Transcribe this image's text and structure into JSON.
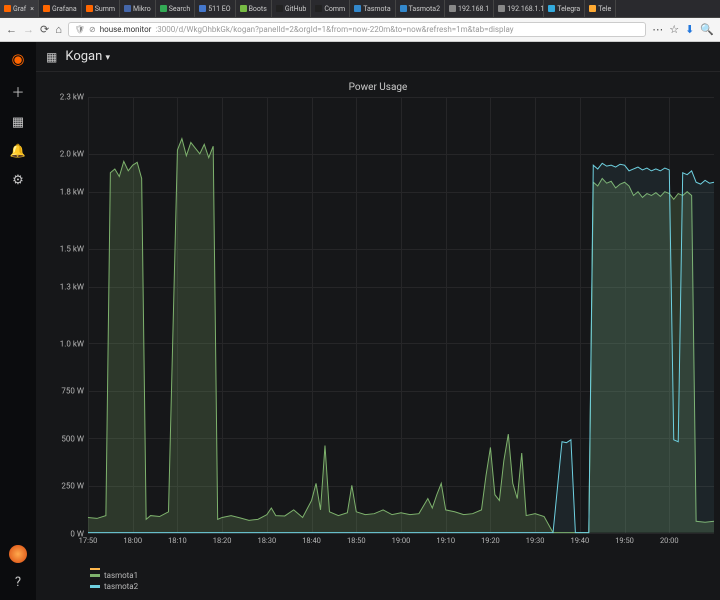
{
  "browser": {
    "tabs": [
      {
        "label": "Graf",
        "favicon": "#ff6600",
        "active": true
      },
      {
        "label": "Grafana",
        "favicon": "#ff6600"
      },
      {
        "label": "Summ",
        "favicon": "#ff6600"
      },
      {
        "label": "Mikro",
        "favicon": "#4466aa"
      },
      {
        "label": "Search",
        "favicon": "#33aa55"
      },
      {
        "label": "511 EO",
        "favicon": "#4477cc"
      },
      {
        "label": "Boots",
        "favicon": "#77bb44"
      },
      {
        "label": "GitHub",
        "favicon": "#222"
      },
      {
        "label": "Comm",
        "favicon": "#222"
      },
      {
        "label": "Tasmota",
        "favicon": "#3388cc"
      },
      {
        "label": "Tasmota2",
        "favicon": "#3388cc"
      },
      {
        "label": "192.168.1",
        "favicon": "#888"
      },
      {
        "label": "192.168.1.1",
        "favicon": "#888"
      },
      {
        "label": "Telegra",
        "favicon": "#33aadd"
      },
      {
        "label": "Tele",
        "favicon": "#ffaa33"
      }
    ],
    "url_host": "house.monitor",
    "url_path": ":3000/d/WkgOhbkGk/kogan?panelId=2&orgId=1&from=now-220m&to=now&refresh=1m&tab=display"
  },
  "dashboard": {
    "title": "Kogan"
  },
  "panel": {
    "title": "Power Usage",
    "y": {
      "ticks": [
        {
          "v": 0,
          "label": "0 W"
        },
        {
          "v": 250,
          "label": "250 W"
        },
        {
          "v": 500,
          "label": "500 W"
        },
        {
          "v": 750,
          "label": "750 W"
        },
        {
          "v": 1000,
          "label": "1.0 kW"
        },
        {
          "v": 1300,
          "label": "1.3 kW"
        },
        {
          "v": 1500,
          "label": "1.5 kW"
        },
        {
          "v": 1800,
          "label": "1.8 kW"
        },
        {
          "v": 2000,
          "label": "2.0 kW"
        },
        {
          "v": 2300,
          "label": "2.3 kW"
        }
      ],
      "min": 0,
      "max": 2300
    },
    "x": {
      "ticks": [
        "17:50",
        "18:00",
        "18:10",
        "18:20",
        "18:30",
        "18:40",
        "18:50",
        "19:00",
        "19:10",
        "19:20",
        "19:30",
        "19:40",
        "19:50",
        "20:00"
      ],
      "min": 0,
      "max": 140
    },
    "series": [
      {
        "name": "tasmota1",
        "color": "#7eb26d",
        "fill": 0.22,
        "points": [
          [
            0,
            80
          ],
          [
            2,
            75
          ],
          [
            4,
            90
          ],
          [
            5,
            1900
          ],
          [
            6,
            1920
          ],
          [
            7,
            1880
          ],
          [
            8,
            1960
          ],
          [
            9,
            1910
          ],
          [
            10,
            1940
          ],
          [
            11,
            1955
          ],
          [
            12,
            1870
          ],
          [
            13,
            70
          ],
          [
            14,
            90
          ],
          [
            16,
            85
          ],
          [
            18,
            110
          ],
          [
            20,
            2020
          ],
          [
            21,
            2080
          ],
          [
            22,
            1990
          ],
          [
            23,
            2060
          ],
          [
            24,
            2030
          ],
          [
            25,
            2000
          ],
          [
            26,
            2050
          ],
          [
            27,
            1980
          ],
          [
            28,
            2040
          ],
          [
            29,
            70
          ],
          [
            30,
            80
          ],
          [
            32,
            90
          ],
          [
            34,
            78
          ],
          [
            36,
            65
          ],
          [
            38,
            70
          ],
          [
            40,
            95
          ],
          [
            41,
            130
          ],
          [
            42,
            90
          ],
          [
            44,
            88
          ],
          [
            46,
            120
          ],
          [
            48,
            80
          ],
          [
            50,
            170
          ],
          [
            51,
            260
          ],
          [
            52,
            120
          ],
          [
            53,
            460
          ],
          [
            54,
            110
          ],
          [
            56,
            90
          ],
          [
            58,
            105
          ],
          [
            59,
            250
          ],
          [
            60,
            110
          ],
          [
            62,
            95
          ],
          [
            64,
            100
          ],
          [
            66,
            120
          ],
          [
            68,
            95
          ],
          [
            70,
            105
          ],
          [
            72,
            95
          ],
          [
            74,
            100
          ],
          [
            76,
            180
          ],
          [
            77,
            130
          ],
          [
            78,
            200
          ],
          [
            79,
            260
          ],
          [
            80,
            120
          ],
          [
            82,
            110
          ],
          [
            84,
            95
          ],
          [
            86,
            100
          ],
          [
            88,
            120
          ],
          [
            89,
            300
          ],
          [
            90,
            450
          ],
          [
            91,
            200
          ],
          [
            92,
            170
          ],
          [
            93,
            380
          ],
          [
            94,
            520
          ],
          [
            95,
            260
          ],
          [
            96,
            180
          ],
          [
            97,
            420
          ],
          [
            98,
            90
          ],
          [
            100,
            100
          ],
          [
            102,
            85
          ],
          [
            104,
            0
          ],
          [
            106,
            0
          ],
          [
            108,
            0
          ],
          [
            110,
            0
          ],
          [
            112,
            0
          ],
          [
            113,
            1850
          ],
          [
            114,
            1830
          ],
          [
            115,
            1870
          ],
          [
            116,
            1845
          ],
          [
            117,
            1855
          ],
          [
            118,
            1820
          ],
          [
            119,
            1840
          ],
          [
            120,
            1850
          ],
          [
            121,
            1830
          ],
          [
            122,
            1780
          ],
          [
            123,
            1800
          ],
          [
            124,
            1770
          ],
          [
            125,
            1790
          ],
          [
            126,
            1780
          ],
          [
            127,
            1795
          ],
          [
            128,
            1775
          ],
          [
            129,
            1800
          ],
          [
            130,
            1790
          ],
          [
            131,
            1760
          ],
          [
            132,
            1790
          ],
          [
            133,
            1780
          ],
          [
            134,
            1800
          ],
          [
            135,
            1780
          ],
          [
            136,
            60
          ],
          [
            138,
            55
          ],
          [
            140,
            60
          ]
        ]
      },
      {
        "name": "tasmota2",
        "color": "#6ed0e0",
        "fill": 0.08,
        "points": [
          [
            0,
            0
          ],
          [
            100,
            0
          ],
          [
            104,
            0
          ],
          [
            106,
            480
          ],
          [
            107,
            475
          ],
          [
            108,
            490
          ],
          [
            109,
            0
          ],
          [
            110,
            0
          ],
          [
            112,
            0
          ],
          [
            113,
            1940
          ],
          [
            114,
            1920
          ],
          [
            115,
            1950
          ],
          [
            116,
            1935
          ],
          [
            117,
            1940
          ],
          [
            118,
            1930
          ],
          [
            119,
            1945
          ],
          [
            120,
            1940
          ],
          [
            121,
            1910
          ],
          [
            122,
            1920
          ],
          [
            123,
            1930
          ],
          [
            124,
            1915
          ],
          [
            125,
            1925
          ],
          [
            126,
            1910
          ],
          [
            127,
            1920
          ],
          [
            128,
            1910
          ],
          [
            129,
            1925
          ],
          [
            130,
            1915
          ],
          [
            131,
            490
          ],
          [
            132,
            480
          ],
          [
            133,
            1900
          ],
          [
            134,
            1890
          ],
          [
            135,
            1910
          ],
          [
            136,
            1850
          ],
          [
            137,
            1840
          ],
          [
            138,
            1860
          ],
          [
            139,
            1845
          ],
          [
            140,
            1850
          ]
        ]
      }
    ],
    "legend_dash_color": "#ffb84d"
  }
}
